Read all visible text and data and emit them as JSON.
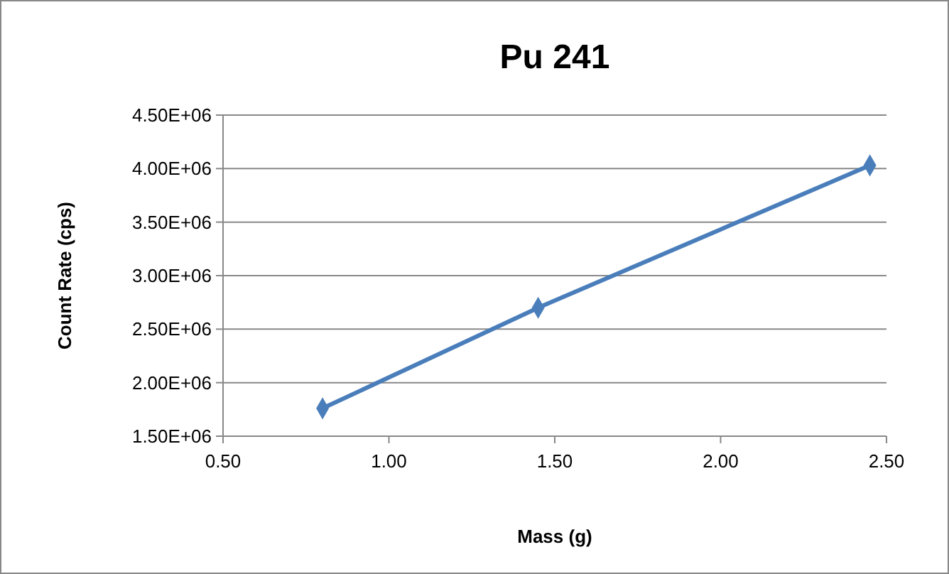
{
  "chart_data": {
    "type": "line",
    "title": "Pu 241",
    "xlabel": "Mass (g)",
    "ylabel": "Count Rate (cps)",
    "x": [
      0.8,
      1.45,
      2.45
    ],
    "series": [
      {
        "color": "#4a7ebb",
        "values": [
          1760000,
          2700000,
          4030000
        ]
      }
    ],
    "xlim": [
      0.5,
      2.5
    ],
    "xticks": [
      {
        "value": 0.5,
        "label": "0.50"
      },
      {
        "value": 1,
        "label": "1.00"
      },
      {
        "value": 1.5,
        "label": "1.50"
      },
      {
        "value": 2,
        "label": "2.00"
      },
      {
        "value": 2.5,
        "label": "2.50"
      }
    ],
    "ylim": [
      1500000,
      4500000
    ],
    "yticks": [
      {
        "value": 1500000,
        "label": "1.50E+06"
      },
      {
        "value": 2000000,
        "label": "2.00E+06"
      },
      {
        "value": 2500000,
        "label": "2.50E+06"
      },
      {
        "value": 3000000,
        "label": "3.00E+06"
      },
      {
        "value": 3500000,
        "label": "3.50E+06"
      },
      {
        "value": 4000000,
        "label": "4.00E+06"
      },
      {
        "value": 4500000,
        "label": "4.50E+06"
      }
    ],
    "grid": "y",
    "marker": "diamond",
    "line_style": "solid"
  }
}
